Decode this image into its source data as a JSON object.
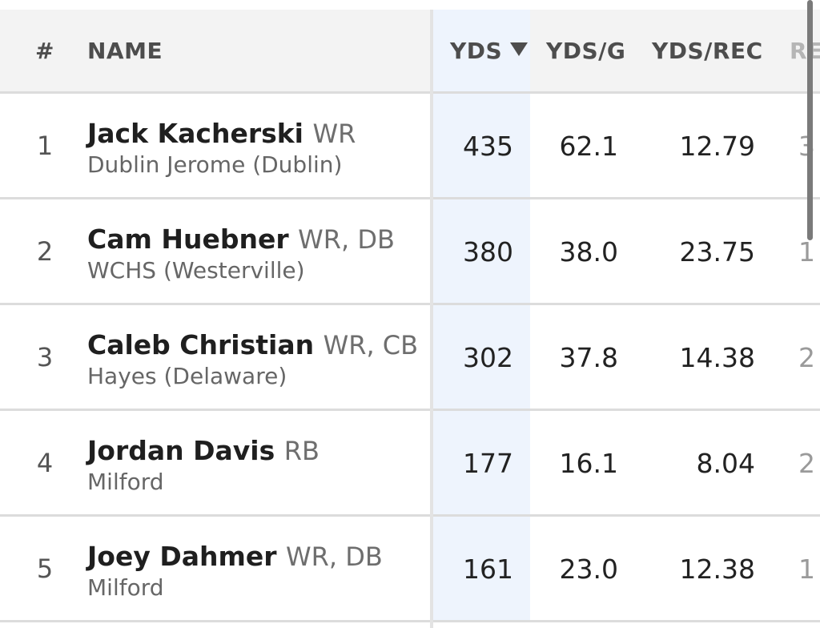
{
  "header": {
    "rank": "#",
    "name": "NAME",
    "yds": "YDS",
    "yds_per_game": "YDS/G",
    "yds_per_rec": "YDS/REC",
    "next_col_partial": "RE"
  },
  "sort": {
    "column": "YDS",
    "direction": "descending",
    "icon": "sort-down-triangle-icon"
  },
  "rows": [
    {
      "rank": "1",
      "name": "Jack Kacherski",
      "position": "WR",
      "school": "Dublin Jerome (Dublin)",
      "yds": "435",
      "yds_g": "62.1",
      "yds_rec": "12.79",
      "next_partial": "3"
    },
    {
      "rank": "2",
      "name": "Cam Huebner",
      "position": "WR, DB",
      "school": "WCHS (Westerville)",
      "yds": "380",
      "yds_g": "38.0",
      "yds_rec": "23.75",
      "next_partial": "1"
    },
    {
      "rank": "3",
      "name": "Caleb Christian",
      "position": "WR, CB",
      "school": "Hayes (Delaware)",
      "yds": "302",
      "yds_g": "37.8",
      "yds_rec": "14.38",
      "next_partial": "2"
    },
    {
      "rank": "4",
      "name": "Jordan Davis",
      "position": "RB",
      "school": "Milford",
      "yds": "177",
      "yds_g": "16.1",
      "yds_rec": "8.04",
      "next_partial": "2"
    },
    {
      "rank": "5",
      "name": "Joey Dahmer",
      "position": "WR, DB",
      "school": "Milford",
      "yds": "161",
      "yds_g": "23.0",
      "yds_rec": "12.38",
      "next_partial": "1"
    }
  ],
  "colors": {
    "header_bg": "#f3f3f3",
    "sorted_column_bg": "#eef4fd",
    "divider": "#dcdcdc",
    "text_primary": "#1f1f1f",
    "text_secondary": "#6e6e6e"
  }
}
